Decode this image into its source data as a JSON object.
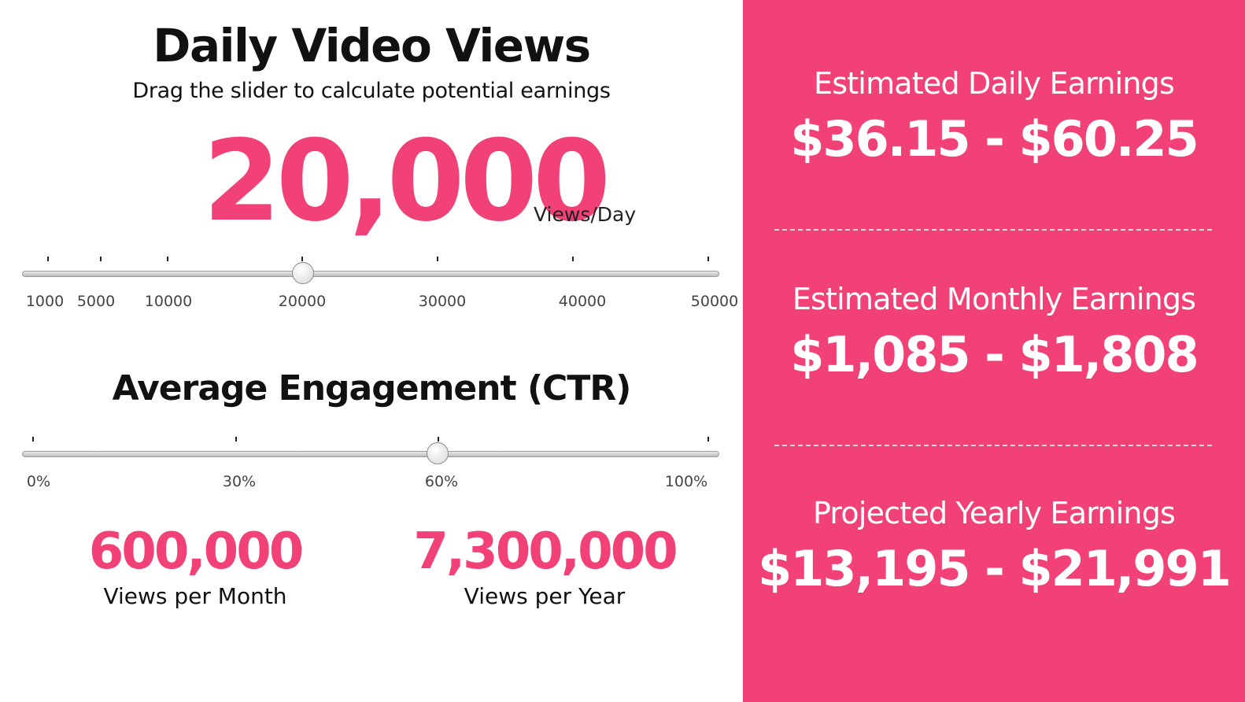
{
  "views_section": {
    "title": "Daily Video Views",
    "subtitle": "Drag the slider to calculate potential earnings",
    "value": "20,000",
    "unit": "Views/Day",
    "slider": {
      "min": 1000,
      "max": 50000,
      "current": 20000,
      "tick_labels": [
        "1000",
        "5000",
        "10000",
        "20000",
        "30000",
        "40000",
        "50000"
      ]
    }
  },
  "engagement_section": {
    "title": "Average Engagement (CTR)",
    "slider": {
      "min": 0,
      "max": 100,
      "current": 60,
      "tick_labels": [
        "0%",
        "30%",
        "60%",
        "100%"
      ]
    }
  },
  "stats": {
    "monthly_value": "600,000",
    "monthly_label": "Views per Month",
    "yearly_value": "7,300,000",
    "yearly_label": "Views per Year"
  },
  "earnings": {
    "daily_label": "Estimated Daily Earnings",
    "daily_value": "$36.15 - $60.25",
    "monthly_label": "Estimated Monthly Earnings",
    "monthly_value": "$1,085 - $1,808",
    "yearly_label": "Projected Yearly Earnings",
    "yearly_value": "$13,195 - $21,991"
  },
  "colors": {
    "accent": "#f14176",
    "panel_background": "#f14176"
  }
}
